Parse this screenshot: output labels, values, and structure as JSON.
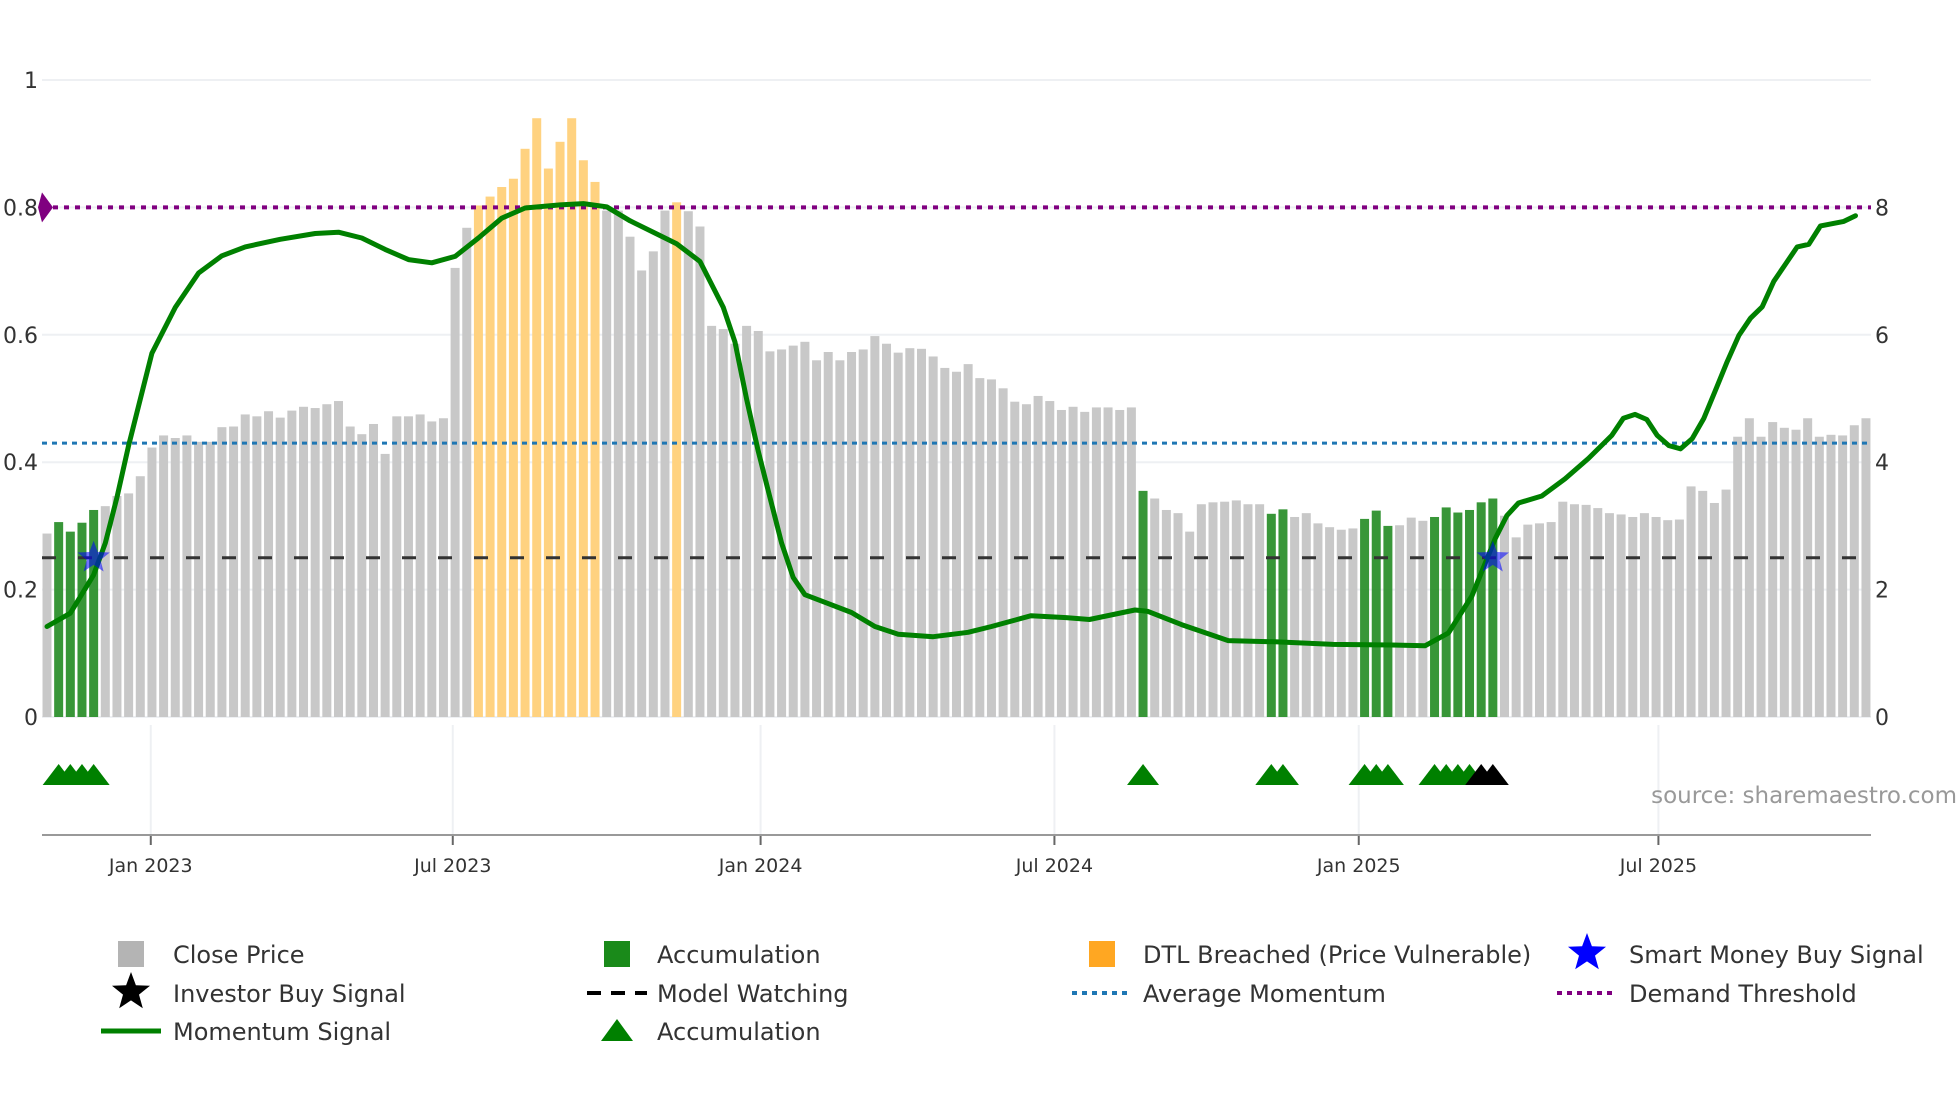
{
  "chart_data": {
    "type": "bar",
    "description_axes": {
      "left_range": [
        0,
        1
      ],
      "right_range": [
        0,
        10
      ]
    },
    "left_ticks": [
      "0",
      "0.2",
      "0.4",
      "0.6",
      "0.8",
      "1"
    ],
    "left_tick_values": [
      0,
      0.2,
      0.4,
      0.6,
      0.8,
      1
    ],
    "right_ticks": [
      "0",
      "2",
      "4",
      "6",
      "8"
    ],
    "right_tick_values": [
      0,
      2,
      4,
      6,
      8
    ],
    "x_ticks": [
      {
        "label": "Jan 2023",
        "index": 9.9
      },
      {
        "label": "Jul 2023",
        "index": 35.8
      },
      {
        "label": "Jan 2024",
        "index": 62.2
      },
      {
        "label": "Jul 2024",
        "index": 87.4
      },
      {
        "label": "Jan 2025",
        "index": 113.5
      },
      {
        "label": "Jul 2025",
        "index": 139.2
      }
    ],
    "close_price": [
      2.88,
      3.06,
      2.91,
      3.05,
      3.25,
      3.31,
      3.47,
      3.51,
      3.78,
      4.23,
      4.42,
      4.38,
      4.42,
      4.32,
      4.32,
      4.55,
      4.56,
      4.75,
      4.72,
      4.8,
      4.7,
      4.81,
      4.87,
      4.85,
      4.91,
      4.96,
      4.56,
      4.44,
      4.6,
      4.13,
      4.72,
      4.72,
      4.75,
      4.64,
      4.69,
      7.05,
      7.68,
      8.03,
      8.17,
      8.32,
      8.45,
      8.92,
      9.4,
      8.61,
      9.03,
      9.4,
      8.74,
      8.4,
      7.95,
      7.95,
      7.54,
      7.01,
      7.31,
      7.95,
      8.08,
      7.94,
      7.7,
      6.14,
      6.09,
      5.86,
      6.14,
      6.06,
      5.74,
      5.77,
      5.83,
      5.89,
      5.6,
      5.73,
      5.6,
      5.73,
      5.77,
      5.98,
      5.86,
      5.72,
      5.79,
      5.78,
      5.66,
      5.48,
      5.42,
      5.54,
      5.32,
      5.3,
      5.16,
      4.95,
      4.91,
      5.04,
      4.96,
      4.82,
      4.87,
      4.79,
      4.86,
      4.86,
      4.82,
      4.86,
      3.55,
      3.43,
      3.25,
      3.2,
      2.91,
      3.34,
      3.37,
      3.38,
      3.4,
      3.34,
      3.34,
      3.19,
      3.26,
      3.14,
      3.2,
      3.04,
      2.98,
      2.94,
      2.96,
      3.11,
      3.24,
      3.0,
      3.01,
      3.13,
      3.08,
      3.14,
      3.29,
      3.21,
      3.25,
      3.37,
      3.43,
      3.16,
      2.82,
      3.02,
      3.04,
      3.06,
      3.38,
      3.34,
      3.33,
      3.28,
      3.2,
      3.18,
      3.14,
      3.2,
      3.14,
      3.09,
      3.1,
      3.62,
      3.55,
      3.36,
      3.57,
      4.4,
      4.69,
      4.4,
      4.63,
      4.54,
      4.51,
      4.69,
      4.4,
      4.43,
      4.42,
      4.58,
      4.69
    ],
    "accumulation_bars": [
      2,
      3,
      4,
      5,
      95,
      106,
      107,
      114,
      115,
      116,
      120,
      121,
      122,
      123,
      124,
      125
    ],
    "dtl_breached_bars": [
      38,
      39,
      40,
      41,
      42,
      43,
      44,
      45,
      46,
      47,
      48,
      55
    ],
    "accumulation_markers": [
      2,
      3,
      4,
      5,
      95,
      106,
      107,
      114,
      115,
      116,
      120,
      121,
      122,
      123
    ],
    "investor_buy_markers": [
      124,
      125
    ],
    "smart_money_buy_signals": [
      {
        "index": 5,
        "value": 0.25
      },
      {
        "index": 125,
        "value": 0.25
      }
    ],
    "momentum": [
      [
        1,
        0.142
      ],
      [
        3,
        0.163
      ],
      [
        5,
        0.223
      ],
      [
        6,
        0.273
      ],
      [
        7,
        0.345
      ],
      [
        8,
        0.426
      ],
      [
        9,
        0.499
      ],
      [
        10,
        0.571
      ],
      [
        12,
        0.643
      ],
      [
        14,
        0.697
      ],
      [
        16,
        0.724
      ],
      [
        18,
        0.738
      ],
      [
        21,
        0.75
      ],
      [
        24,
        0.759
      ],
      [
        26,
        0.761
      ],
      [
        28,
        0.752
      ],
      [
        30,
        0.734
      ],
      [
        32,
        0.718
      ],
      [
        34,
        0.713
      ],
      [
        36,
        0.723
      ],
      [
        38,
        0.752
      ],
      [
        40,
        0.783
      ],
      [
        42,
        0.799
      ],
      [
        45,
        0.804
      ],
      [
        47,
        0.806
      ],
      [
        49,
        0.801
      ],
      [
        51,
        0.779
      ],
      [
        53,
        0.761
      ],
      [
        55,
        0.743
      ],
      [
        57,
        0.715
      ],
      [
        59,
        0.643
      ],
      [
        60,
        0.589
      ],
      [
        61,
        0.499
      ],
      [
        62,
        0.417
      ],
      [
        63,
        0.345
      ],
      [
        64,
        0.273
      ],
      [
        65,
        0.219
      ],
      [
        66,
        0.192
      ],
      [
        68,
        0.178
      ],
      [
        70,
        0.164
      ],
      [
        72,
        0.142
      ],
      [
        74,
        0.13
      ],
      [
        77,
        0.126
      ],
      [
        80,
        0.133
      ],
      [
        82,
        0.142
      ],
      [
        85.4,
        0.159
      ],
      [
        88.4,
        0.156
      ],
      [
        90.4,
        0.153
      ],
      [
        94.3,
        0.168
      ],
      [
        95.4,
        0.166
      ],
      [
        98.3,
        0.145
      ],
      [
        102.3,
        0.12
      ],
      [
        106.3,
        0.118
      ],
      [
        111.3,
        0.114
      ],
      [
        116.3,
        0.113
      ],
      [
        119.2,
        0.112
      ],
      [
        121.2,
        0.132
      ],
      [
        123.2,
        0.19
      ],
      [
        125.2,
        0.28
      ],
      [
        126.2,
        0.316
      ],
      [
        127.2,
        0.336
      ],
      [
        129.2,
        0.347
      ],
      [
        131.2,
        0.374
      ],
      [
        133.2,
        0.406
      ],
      [
        135.2,
        0.442
      ],
      [
        136.2,
        0.469
      ],
      [
        137.2,
        0.475
      ],
      [
        138.2,
        0.467
      ],
      [
        139.1,
        0.442
      ],
      [
        140.1,
        0.426
      ],
      [
        141.1,
        0.421
      ],
      [
        142.1,
        0.437
      ],
      [
        143.1,
        0.469
      ],
      [
        144.1,
        0.513
      ],
      [
        145.1,
        0.558
      ],
      [
        146.1,
        0.599
      ],
      [
        147.1,
        0.626
      ],
      [
        148.1,
        0.644
      ],
      [
        149.1,
        0.684
      ],
      [
        150.1,
        0.711
      ],
      [
        151.1,
        0.738
      ],
      [
        152.1,
        0.742
      ],
      [
        153.1,
        0.771
      ],
      [
        155.1,
        0.778
      ],
      [
        156.1,
        0.787
      ]
    ],
    "model_watching_level": 0.25,
    "average_momentum": 0.43,
    "demand_threshold": 0.8,
    "legend": {
      "close_price": "Close Price",
      "accumulation_bar": "Accumulation",
      "dtl": "DTL Breached (Price Vulnerable)",
      "smart_money": "Smart Money Buy Signal",
      "investor": "Investor Buy Signal",
      "model_watching": "Model Watching",
      "avg_momentum": "Average Momentum",
      "demand": "Demand Threshold",
      "momentum": "Momentum Signal",
      "accumulation_marker": "Accumulation"
    },
    "legend_placement": "bottom",
    "source": "source: sharemaestro.com",
    "colors": {
      "gray": "#c8c8c8",
      "green": "#228b22",
      "orange": "#ffd280",
      "momentum": "#008000",
      "avg": "#1f77b4",
      "demand": "#800080",
      "model": "#333333",
      "star": "#0000ff"
    }
  }
}
